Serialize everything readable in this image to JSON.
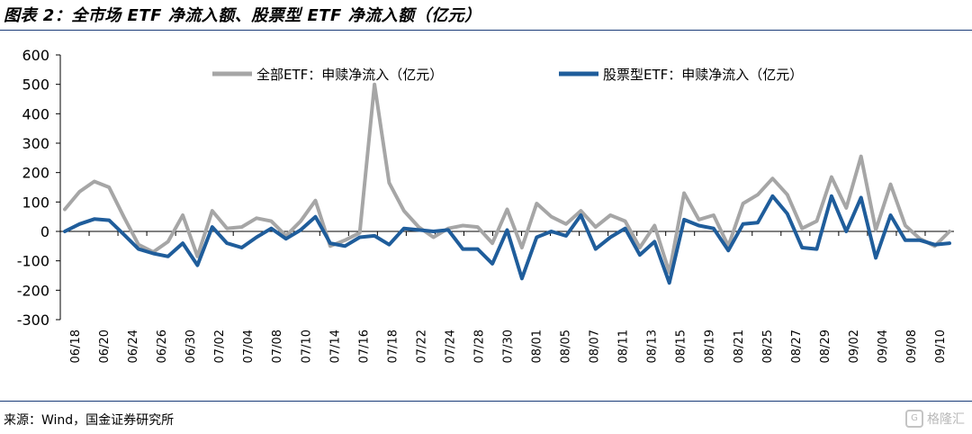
{
  "title": "图表 2：全市场 ETF 净流入额、股票型 ETF 净流入额（亿元）",
  "source": "来源：Wind，国金证券研究所",
  "watermark": "格隆汇",
  "chart_data": {
    "type": "line",
    "ylim": [
      -300,
      600
    ],
    "y_ticks": [
      600,
      500,
      400,
      300,
      200,
      100,
      0,
      -100,
      -200,
      -300
    ],
    "x_tick_labels": [
      "06/18",
      "06/20",
      "06/24",
      "06/26",
      "06/30",
      "07/02",
      "07/04",
      "07/08",
      "07/10",
      "07/14",
      "07/16",
      "07/18",
      "07/22",
      "07/24",
      "07/28",
      "07/30",
      "08/01",
      "08/05",
      "08/07",
      "08/11",
      "08/13",
      "08/15",
      "08/19",
      "08/21",
      "08/25",
      "08/27",
      "08/29",
      "09/02",
      "09/04",
      "09/08",
      "09/10"
    ],
    "legend_position": "top",
    "series": [
      {
        "name": "全部ETF：申赎净流入（亿元）",
        "color": "#a6a6a6",
        "values": [
          75,
          135,
          170,
          150,
          50,
          -45,
          -70,
          -35,
          55,
          -85,
          70,
          10,
          15,
          45,
          35,
          -15,
          35,
          105,
          -50,
          -30,
          -5,
          500,
          165,
          70,
          15,
          -20,
          10,
          20,
          15,
          -40,
          75,
          -55,
          95,
          50,
          25,
          70,
          15,
          55,
          35,
          -55,
          20,
          -140,
          130,
          40,
          55,
          -50,
          95,
          125,
          180,
          125,
          10,
          35,
          185,
          80,
          255,
          5,
          160,
          20,
          -25,
          -50,
          0
        ],
        "style": "gray"
      },
      {
        "name": "股票型ETF：申赎净流入（亿元）",
        "color": "#1f5d9b",
        "values": [
          0,
          25,
          42,
          38,
          -10,
          -60,
          -75,
          -85,
          -40,
          -115,
          15,
          -40,
          -55,
          -20,
          10,
          -25,
          5,
          50,
          -40,
          -50,
          -20,
          -15,
          -45,
          10,
          5,
          0,
          5,
          -60,
          -60,
          -110,
          5,
          -160,
          -20,
          0,
          -15,
          55,
          -60,
          -20,
          10,
          -80,
          -35,
          -175,
          40,
          20,
          10,
          -65,
          25,
          30,
          120,
          60,
          -55,
          -60,
          120,
          0,
          115,
          -90,
          55,
          -30,
          -30,
          -45,
          -40
        ],
        "style": "blue"
      }
    ]
  }
}
